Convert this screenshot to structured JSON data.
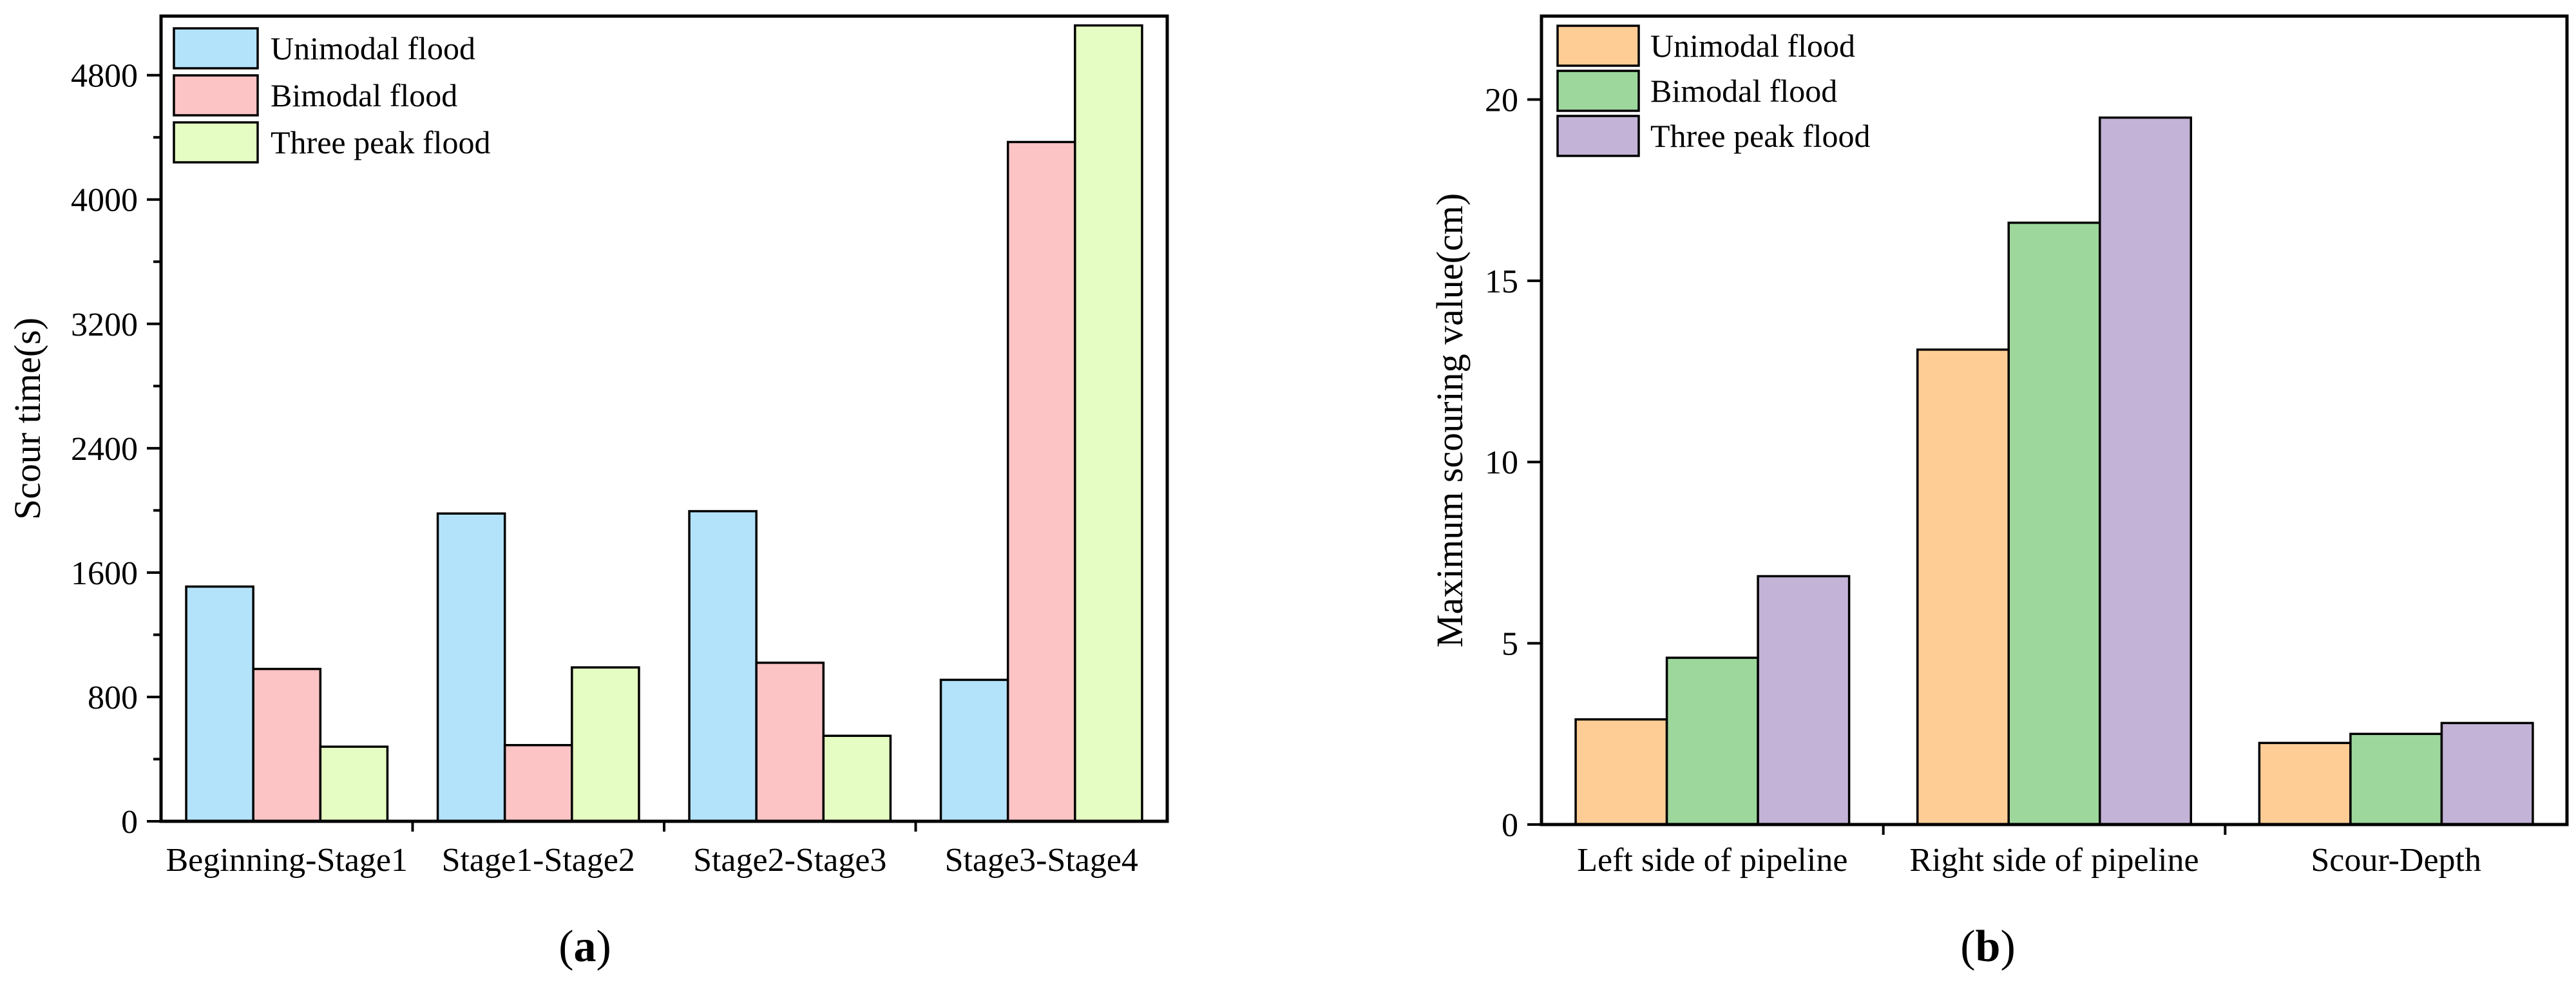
{
  "chart_data": [
    {
      "type": "bar",
      "panel_label": "a",
      "xlabel": "",
      "ylabel": "Scour time(s)",
      "ylim": [
        0,
        5180
      ],
      "yticks": [
        0,
        800,
        1600,
        2400,
        3200,
        4000,
        4800
      ],
      "categories": [
        "Beginning-Stage1",
        "Stage1-Stage2",
        "Stage2-Stage3",
        "Stage3-Stage4"
      ],
      "series": [
        {
          "name": "Unimodal flood",
          "color": "#b3e3fb",
          "values": [
            1510,
            1980,
            1995,
            910
          ]
        },
        {
          "name": "Bimodal flood",
          "color": "#fdc4c5",
          "values": [
            980,
            490,
            1020,
            4370
          ]
        },
        {
          "name": "Three peak flood",
          "color": "#e5fcc2",
          "values": [
            480,
            990,
            550,
            5120
          ]
        }
      ],
      "legend_position": "top-left",
      "grid": false
    },
    {
      "type": "bar",
      "panel_label": "b",
      "xlabel": "",
      "ylabel": "Maximum scouring value(cm)",
      "ylim": [
        0,
        22.3
      ],
      "yticks": [
        0,
        5,
        10,
        15,
        20
      ],
      "categories": [
        "Left side of pipeline",
        "Right side of pipeline",
        "Scour-Depth"
      ],
      "series": [
        {
          "name": "Unimodal flood",
          "color": "#fecd96",
          "values": [
            2.9,
            13.1,
            2.25
          ]
        },
        {
          "name": "Bimodal flood",
          "color": "#9dd79c",
          "values": [
            4.6,
            16.6,
            2.5
          ]
        },
        {
          "name": "Three peak flood",
          "color": "#c3b3d7",
          "values": [
            6.85,
            19.5,
            2.8
          ]
        }
      ],
      "legend_position": "top-left",
      "grid": false
    }
  ]
}
